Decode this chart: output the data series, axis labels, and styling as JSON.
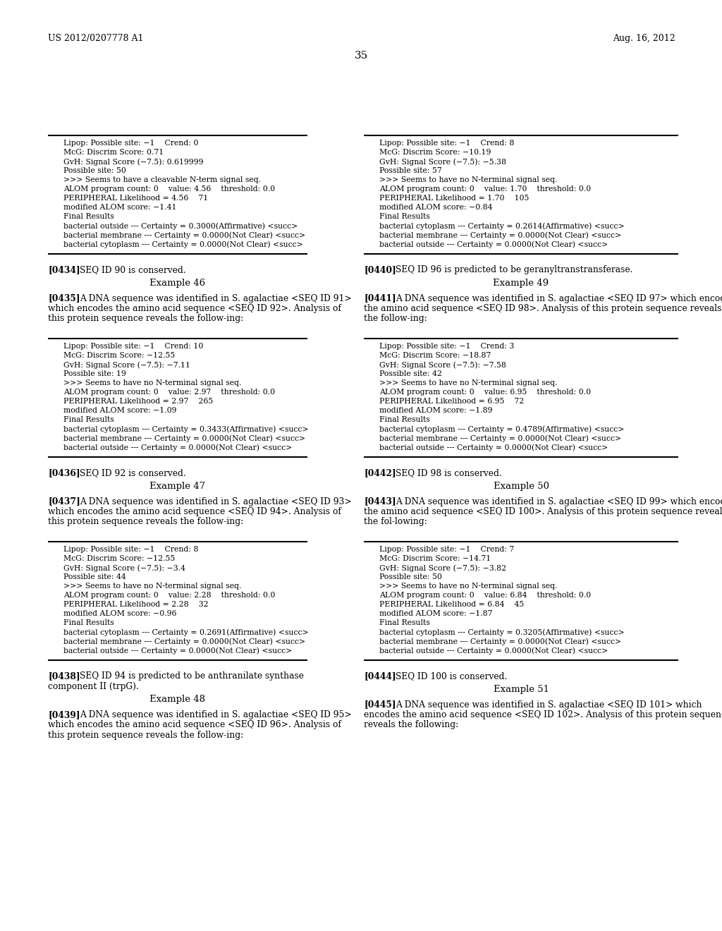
{
  "page_number": "35",
  "header_left": "US 2012/0207778 A1",
  "header_right": "Aug. 16, 2012",
  "background_color": "#ffffff",
  "text_color": "#000000",
  "left_column": {
    "box1": {
      "lines": [
        "Lipop: Possible site: −1    Crend: 0",
        "McG: Discrim Score: 0.71",
        "GvH: Signal Score (−7.5): 0.619999",
        "Possible site: 50",
        ">>> Seems to have a cleavable N-term signal seq.",
        "ALOM program count: 0    value: 4.56    threshold: 0.0",
        "PERIPHERAL Likelihood = 4.56    71",
        "modified ALOM score: −1.41",
        "Final Results",
        "bacterial outside --- Certainty = 0.3000(Affirmative) <succ>",
        "bacterial membrane --- Certainty = 0.0000(Not Clear) <succ>",
        "bacterial cytoplasm --- Certainty = 0.0000(Not Clear) <succ>"
      ]
    },
    "para1_tag": "[0434]",
    "para1_text": "SEQ ID 90 is conserved.",
    "example1": "Example 46",
    "para2_tag": "[0435]",
    "para2_text": "A DNA sequence was identified in S. agalactiae <SEQ ID 91> which encodes the amino acid sequence <SEQ ID 92>. Analysis of this protein sequence reveals the follow-ing:",
    "box2": {
      "lines": [
        "Lipop: Possible site: −1    Crend: 10",
        "McG: Discrim Score: −12.55",
        "GvH: Signal Score (−7.5): −7.11",
        "Possible site: 19",
        ">>> Seems to have no N-terminal signal seq.",
        "ALOM program count: 0    value: 2.97    threshold: 0.0",
        "PERIPHERAL Likelihood = 2.97    265",
        "modified ALOM score: −1.09",
        "Final Results",
        "bacterial cytoplasm --- Certainty = 0.3433(Affirmative) <succ>",
        "bacterial membrane --- Certainty = 0.0000(Not Clear) <succ>",
        "bacterial outside --- Certainty = 0.0000(Not Clear) <succ>"
      ]
    },
    "para3_tag": "[0436]",
    "para3_text": "SEQ ID 92 is conserved.",
    "example2": "Example 47",
    "para4_tag": "[0437]",
    "para4_text": "A DNA sequence was identified in S. agalactiae <SEQ ID 93> which encodes the amino acid sequence <SEQ ID 94>. Analysis of this protein sequence reveals the follow-ing:",
    "box3": {
      "lines": [
        "Lipop: Possible site: −1    Crend: 8",
        "McG: Discrim Score: −12.55",
        "GvH: Signal Score (−7.5): −3.4",
        "Possible site: 44",
        ">>> Seems to have no N-terminal signal seq.",
        "ALOM program count: 0    value: 2.28    threshold: 0.0",
        "PERIPHERAL Likelihood = 2.28    32",
        "modified ALOM score: −0.96",
        "Final Results",
        "bacterial cytoplasm --- Certainty = 0.2691(Affirmative) <succ>",
        "bacterial membrane --- Certainty = 0.0000(Not Clear) <succ>",
        "bacterial outside --- Certainty = 0.0000(Not Clear) <succ>"
      ]
    },
    "para5_tag": "[0438]",
    "para5_text": "SEQ ID 94 is predicted to be anthranilate synthase component II (trpG).",
    "example3": "Example 48",
    "para6_tag": "[0439]",
    "para6_text": "A DNA sequence was identified in S. agalactiae <SEQ ID 95> which encodes the amino acid sequence <SEQ ID 96>. Analysis of this protein sequence reveals the follow-ing:"
  },
  "right_column": {
    "box1": {
      "lines": [
        "Lipop: Possible site: −1    Crend: 8",
        "McG: Discrim Score: −10.19",
        "GvH: Signal Score (−7.5): −5.38",
        "Possible site: 57",
        ">>> Seems to have no N-terminal signal seq.",
        "ALOM program count: 0    value: 1.70    threshold: 0.0",
        "PERIPHERAL Likelihood = 1.70    105",
        "modified ALOM score: −0.84",
        "Final Results",
        "bacterial cytoplasm --- Certainty = 0.2614(Affirmative) <succ>",
        "bacterial membrane --- Certainty = 0.0000(Not Clear) <succ>",
        "bacterial outside --- Certainty = 0.0000(Not Clear) <succ>"
      ]
    },
    "para1_tag": "[0440]",
    "para1_text": "SEQ ID 96 is predicted to be geranyltranstransferase.",
    "example1": "Example 49",
    "para2_tag": "[0441]",
    "para2_text": "A DNA sequence was identified in S. agalactiae <SEQ ID 97> which encodes the amino acid sequence <SEQ ID 98>. Analysis of this protein sequence reveals the follow-ing:",
    "box2": {
      "lines": [
        "Lipop: Possible site: −1    Crend: 3",
        "McG: Discrim Score: −18.87",
        "GvH: Signal Score (−7.5): −7.58",
        "Possible site: 42",
        ">>> Seems to have no N-terminal signal seq.",
        "ALOM program count: 0    value: 6.95    threshold: 0.0",
        "PERIPHERAL Likelihood = 6.95    72",
        "modified ALOM score: −1.89",
        "Final Results",
        "bacterial cytoplasm --- Certainty = 0.4789(Affirmative) <succ>",
        "bacterial membrane --- Certainty = 0.0000(Not Clear) <succ>",
        "bacterial outside --- Certainty = 0.0000(Not Clear) <succ>"
      ]
    },
    "para3_tag": "[0442]",
    "para3_text": "SEQ ID 98 is conserved.",
    "example2": "Example 50",
    "para4_tag": "[0443]",
    "para4_text": "A DNA sequence was identified in S. agalactiae <SEQ ID 99> which encodes the amino acid sequence <SEQ ID 100>. Analysis of this protein sequence reveals the fol-lowing:",
    "box3": {
      "lines": [
        "Lipop: Possible site: −1    Crend: 7",
        "McG: Discrim Score: −14.71",
        "GvH: Signal Score (−7.5): −3.82",
        "Possible site: 50",
        ">>> Seems to have no N-terminal signal seq.",
        "ALOM program count: 0    value: 6.84    threshold: 0.0",
        "PERIPHERAL Likelihood = 6.84    45",
        "modified ALOM score: −1.87",
        "Final Results",
        "bacterial cytoplasm --- Certainty = 0.3205(Affirmative) <succ>",
        "bacterial membrane --- Certainty = 0.0000(Not Clear) <succ>",
        "bacterial outside --- Certainty = 0.0000(Not Clear) <succ>"
      ]
    },
    "para5_tag": "[0444]",
    "para5_text": "SEQ ID 100 is conserved.",
    "example3": "Example 51",
    "para6_tag": "[0445]",
    "para6_text": "A DNA sequence was identified in S. agalactiae <SEQ ID 101> which encodes the amino acid sequence <SEQ ID 102>. Analysis of this protein sequence reveals the following:"
  }
}
